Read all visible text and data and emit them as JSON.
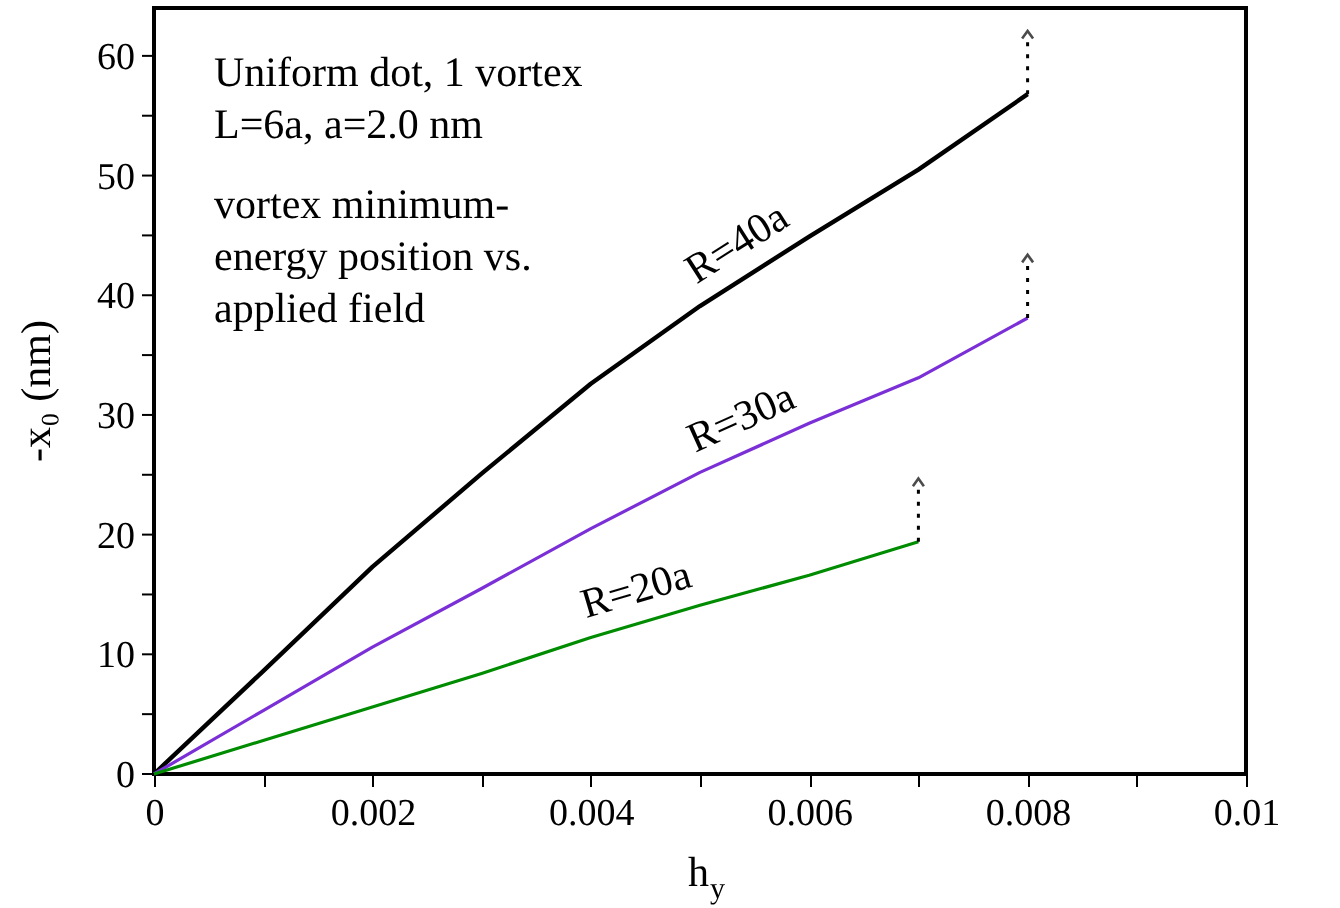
{
  "chart_data": {
    "type": "line",
    "xlabel": "h$_{y}$",
    "ylabel": "-x₀ (nm)",
    "x": [
      0,
      0.001,
      0.002,
      0.003,
      0.004,
      0.005,
      0.006,
      0.007,
      0.008
    ],
    "series": [
      {
        "name": "R=40a",
        "color": "#000000",
        "values": [
          0,
          8.6,
          17.3,
          25.1,
          32.6,
          39.1,
          44.9,
          50.5,
          56.8
        ]
      },
      {
        "name": "R=30a",
        "color": "#7b2fd6",
        "values": [
          0,
          5.3,
          10.6,
          15.5,
          20.5,
          25.2,
          29.3,
          33.1,
          38.1
        ]
      },
      {
        "name": "R=20a",
        "color": "#008c00",
        "values": [
          0,
          2.8,
          5.6,
          8.4,
          11.4,
          14.1,
          16.6,
          19.4,
          null
        ]
      }
    ],
    "xlim": [
      0,
      0.01
    ],
    "ylim": [
      0,
      64
    ],
    "xticks": [
      0,
      {
        "value": 0.001,
        "label": null
      },
      0.002,
      {
        "value": 0.003,
        "label": null
      },
      0.004,
      {
        "value": 0.005,
        "label": null
      },
      0.006,
      {
        "value": 0.007,
        "label": null
      },
      0.008,
      {
        "value": 0.009,
        "label": null
      },
      0.01
    ],
    "yticks": [
      0,
      {
        "value": 5,
        "label": null
      },
      10,
      {
        "value": 15,
        "label": null
      },
      20,
      {
        "value": 25,
        "label": null
      },
      30,
      {
        "value": 35,
        "label": null
      },
      40,
      {
        "value": 45,
        "label": null
      },
      50,
      {
        "value": 55,
        "label": null
      },
      60
    ],
    "annotations": [
      "Uniform dot, 1 vortex",
      "L=6a,  a=2.0 nm",
      "vortex minimum-\nenergy position vs.\napplied field"
    ],
    "grid": false,
    "marker": "none",
    "line_style": "solid"
  }
}
